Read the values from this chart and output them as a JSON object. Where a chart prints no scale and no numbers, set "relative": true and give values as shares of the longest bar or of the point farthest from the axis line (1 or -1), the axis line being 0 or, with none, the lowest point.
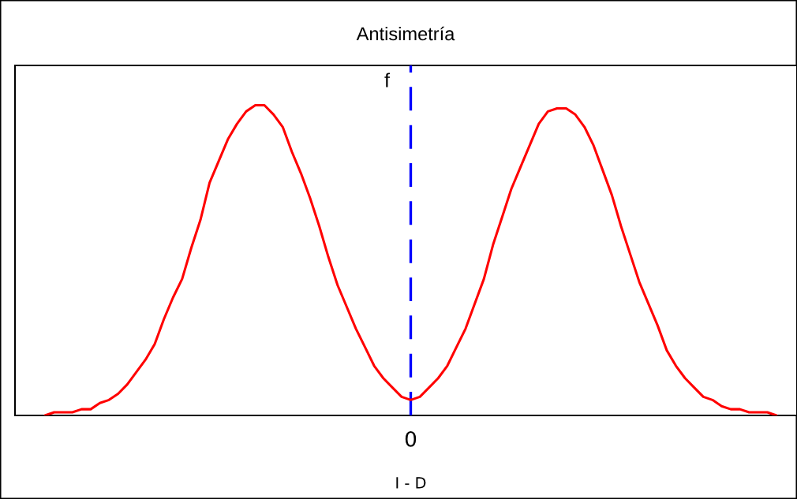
{
  "chart_data": {
    "type": "line",
    "title": "Antisimetría",
    "xlabel": "I - D",
    "ylabel": "f",
    "relative": true,
    "categories": [
      null,
      null,
      null,
      null,
      null,
      null,
      null,
      null,
      null,
      null,
      null,
      null,
      null,
      null,
      null,
      null,
      null,
      null,
      null,
      null,
      null,
      null,
      null,
      null,
      null,
      null,
      null,
      null,
      null,
      null,
      null,
      null,
      null,
      null,
      null,
      null,
      null,
      null,
      null,
      null,
      null,
      null,
      null,
      null,
      null,
      null,
      null,
      null,
      null,
      null,
      null,
      null,
      null,
      null,
      null,
      null,
      null,
      null,
      null,
      null,
      null,
      null,
      null,
      null,
      null,
      null,
      null,
      null,
      null,
      null,
      null,
      null,
      null,
      null,
      null,
      null,
      null,
      null,
      null,
      null,
      null
    ],
    "series": [
      {
        "color": "#ff0000",
        "values": [
          0.0,
          0.01,
          0.01,
          0.01,
          0.02,
          0.02,
          0.04,
          0.05,
          0.07,
          0.1,
          0.14,
          0.18,
          0.23,
          0.31,
          0.38,
          0.44,
          0.54,
          0.63,
          0.75,
          0.82,
          0.89,
          0.94,
          0.98,
          1.0,
          1.0,
          0.97,
          0.93,
          0.85,
          0.78,
          0.7,
          0.61,
          0.51,
          0.42,
          0.35,
          0.28,
          0.22,
          0.16,
          0.12,
          0.09,
          0.06,
          0.05,
          0.06,
          0.09,
          0.12,
          0.16,
          0.22,
          0.28,
          0.36,
          0.44,
          0.55,
          0.64,
          0.73,
          0.8,
          0.87,
          0.94,
          0.98,
          0.99,
          0.99,
          0.97,
          0.93,
          0.87,
          0.79,
          0.71,
          0.61,
          0.52,
          0.43,
          0.36,
          0.29,
          0.21,
          0.16,
          0.12,
          0.09,
          0.06,
          0.05,
          0.03,
          0.02,
          0.02,
          0.01,
          0.01,
          0.01,
          0.0
        ]
      }
    ],
    "annotations": [
      "0"
    ]
  }
}
